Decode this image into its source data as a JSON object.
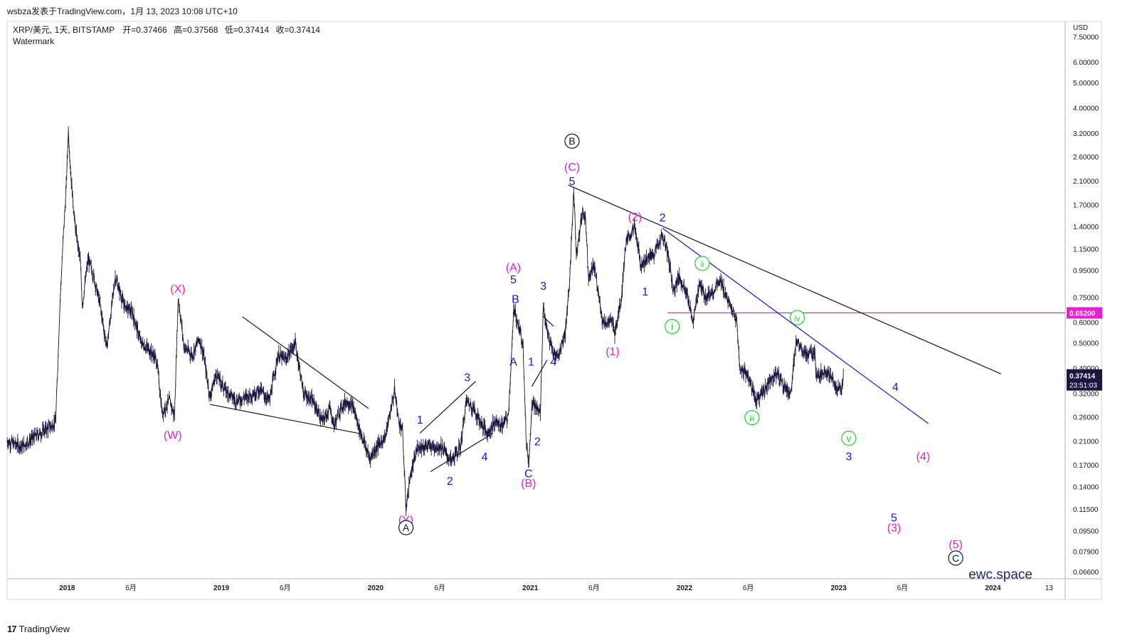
{
  "header": {
    "snapshot_line": "wsbza发表于TradingView.com，1月 13, 2023 10:08 UTC+10"
  },
  "legend": {
    "symbol": "XRP/美元, 1天, BITSTAMP",
    "open_label": "开",
    "open": "=0.37466",
    "high_label": "高",
    "high": "=0.37568",
    "low_label": "低",
    "low": "=0.37414",
    "close_label": "收",
    "close": "=0.37414",
    "watermark_label": "Watermark"
  },
  "footer": {
    "brand": "TradingView",
    "brand_mark": "17"
  },
  "watermark": {
    "text": "ewc.space"
  },
  "colors": {
    "candles": "#1b1640",
    "magenta": "#e91ec7",
    "blue": "#1a14d6",
    "green": "#1bd12b",
    "black": "#131722",
    "hline": "#e620d4",
    "price_tag_bg": "#1b1640",
    "axis_text": "#131722",
    "border": "#b2b5be"
  },
  "chart_data": {
    "type": "line",
    "currency_label": "USD",
    "y_scale": "log",
    "ylim": [
      0.062,
      8.6
    ],
    "xlim": [
      "2017-08-12",
      "2024-06-20"
    ],
    "price_ticks": [
      "7.50000",
      "6.00000",
      "5.00000",
      "4.00000",
      "3.20000",
      "2.60000",
      "2.10000",
      "1.70000",
      "1.40000",
      "1.15000",
      "0.95000",
      "0.75000",
      "0.60000",
      "0.50000",
      "0.40000",
      "0.32000",
      "0.26000",
      "0.21000",
      "0.17000",
      "0.14000",
      "0.11500",
      "0.09500",
      "0.07900",
      "0.06600"
    ],
    "time_ticks": [
      {
        "label": "2018",
        "date": "2018-01-01",
        "bold": true
      },
      {
        "label": "6月",
        "date": "2018-06-01",
        "bold": false
      },
      {
        "label": "2019",
        "date": "2019-01-01",
        "bold": true
      },
      {
        "label": "6月",
        "date": "2019-06-01",
        "bold": false
      },
      {
        "label": "2020",
        "date": "2020-01-01",
        "bold": true
      },
      {
        "label": "6月",
        "date": "2020-06-01",
        "bold": false
      },
      {
        "label": "2021",
        "date": "2021-01-01",
        "bold": true
      },
      {
        "label": "6月",
        "date": "2021-06-01",
        "bold": false
      },
      {
        "label": "2022",
        "date": "2022-01-01",
        "bold": true
      },
      {
        "label": "6月",
        "date": "2022-06-01",
        "bold": false
      },
      {
        "label": "2023",
        "date": "2023-01-01",
        "bold": true
      },
      {
        "label": "6月",
        "date": "2023-06-01",
        "bold": false
      },
      {
        "label": "2024",
        "date": "2024-01-01",
        "bold": true
      },
      {
        "label": "13",
        "date": "2024-05-13",
        "bold": false
      }
    ],
    "series": [
      {
        "kind": "daily-close-path",
        "points": [
          [
            "2017-08-12",
            0.21
          ],
          [
            "2017-09-15",
            0.2
          ],
          [
            "2017-10-20",
            0.22
          ],
          [
            "2017-11-25",
            0.24
          ],
          [
            "2017-12-05",
            0.25
          ],
          [
            "2017-12-15",
            0.7
          ],
          [
            "2017-12-22",
            1.2
          ],
          [
            "2017-12-30",
            2.0
          ],
          [
            "2018-01-04",
            3.3
          ],
          [
            "2018-01-10",
            2.2
          ],
          [
            "2018-01-20",
            1.4
          ],
          [
            "2018-02-01",
            1.05
          ],
          [
            "2018-02-06",
            0.7
          ],
          [
            "2018-02-20",
            1.05
          ],
          [
            "2018-03-05",
            0.9
          ],
          [
            "2018-03-20",
            0.7
          ],
          [
            "2018-04-05",
            0.48
          ],
          [
            "2018-04-25",
            0.9
          ],
          [
            "2018-05-15",
            0.7
          ],
          [
            "2018-06-05",
            0.65
          ],
          [
            "2018-06-25",
            0.5
          ],
          [
            "2018-07-15",
            0.47
          ],
          [
            "2018-08-01",
            0.43
          ],
          [
            "2018-08-14",
            0.27
          ],
          [
            "2018-09-01",
            0.3
          ],
          [
            "2018-09-12",
            0.26
          ],
          [
            "2018-09-21",
            0.75
          ],
          [
            "2018-10-05",
            0.48
          ],
          [
            "2018-10-25",
            0.45
          ],
          [
            "2018-11-10",
            0.52
          ],
          [
            "2018-11-20",
            0.45
          ],
          [
            "2018-12-05",
            0.31
          ],
          [
            "2018-12-20",
            0.38
          ],
          [
            "2019-01-10",
            0.33
          ],
          [
            "2019-02-05",
            0.3
          ],
          [
            "2019-03-01",
            0.31
          ],
          [
            "2019-04-01",
            0.33
          ],
          [
            "2019-04-25",
            0.3
          ],
          [
            "2019-05-15",
            0.45
          ],
          [
            "2019-06-01",
            0.43
          ],
          [
            "2019-06-25",
            0.5
          ],
          [
            "2019-07-15",
            0.32
          ],
          [
            "2019-08-05",
            0.3
          ],
          [
            "2019-08-28",
            0.25
          ],
          [
            "2019-09-15",
            0.28
          ],
          [
            "2019-09-25",
            0.24
          ],
          [
            "2019-10-10",
            0.28
          ],
          [
            "2019-10-25",
            0.3
          ],
          [
            "2019-11-10",
            0.28
          ],
          [
            "2019-11-25",
            0.23
          ],
          [
            "2019-12-18",
            0.18
          ],
          [
            "2020-01-05",
            0.2
          ],
          [
            "2020-01-25",
            0.22
          ],
          [
            "2020-02-15",
            0.33
          ],
          [
            "2020-02-25",
            0.25
          ],
          [
            "2020-03-05",
            0.23
          ],
          [
            "2020-03-13",
            0.115
          ],
          [
            "2020-03-22",
            0.15
          ],
          [
            "2020-04-10",
            0.2
          ],
          [
            "2020-05-01",
            0.2
          ],
          [
            "2020-05-20",
            0.2
          ],
          [
            "2020-06-05",
            0.2
          ],
          [
            "2020-06-28",
            0.175
          ],
          [
            "2020-07-20",
            0.2
          ],
          [
            "2020-08-03",
            0.3
          ],
          [
            "2020-08-20",
            0.28
          ],
          [
            "2020-09-10",
            0.24
          ],
          [
            "2020-09-23",
            0.225
          ],
          [
            "2020-10-10",
            0.25
          ],
          [
            "2020-10-25",
            0.24
          ],
          [
            "2020-11-10",
            0.26
          ],
          [
            "2020-11-24",
            0.7
          ],
          [
            "2020-12-01",
            0.6
          ],
          [
            "2020-12-15",
            0.5
          ],
          [
            "2020-12-23",
            0.2
          ],
          [
            "2020-12-29",
            0.175
          ],
          [
            "2021-01-05",
            0.3
          ],
          [
            "2021-01-15",
            0.28
          ],
          [
            "2021-01-25",
            0.27
          ],
          [
            "2021-02-01",
            0.7
          ],
          [
            "2021-02-10",
            0.55
          ],
          [
            "2021-02-25",
            0.45
          ],
          [
            "2021-03-10",
            0.45
          ],
          [
            "2021-03-25",
            0.55
          ],
          [
            "2021-04-05",
            0.9
          ],
          [
            "2021-04-14",
            1.96
          ],
          [
            "2021-04-20",
            1.1
          ],
          [
            "2021-05-05",
            1.6
          ],
          [
            "2021-05-12",
            1.5
          ],
          [
            "2021-05-19",
            0.9
          ],
          [
            "2021-06-01",
            1.0
          ],
          [
            "2021-06-22",
            0.6
          ],
          [
            "2021-07-15",
            0.6
          ],
          [
            "2021-07-20",
            0.55
          ],
          [
            "2021-08-05",
            0.75
          ],
          [
            "2021-08-15",
            1.2
          ],
          [
            "2021-09-05",
            1.4
          ],
          [
            "2021-09-20",
            1.0
          ],
          [
            "2021-10-05",
            1.05
          ],
          [
            "2021-10-20",
            1.1
          ],
          [
            "2021-11-05",
            1.25
          ],
          [
            "2021-11-10",
            1.3
          ],
          [
            "2021-11-25",
            1.05
          ],
          [
            "2021-12-05",
            0.8
          ],
          [
            "2021-12-20",
            0.9
          ],
          [
            "2022-01-05",
            0.78
          ],
          [
            "2022-01-22",
            0.6
          ],
          [
            "2022-02-05",
            0.85
          ],
          [
            "2022-02-20",
            0.75
          ],
          [
            "2022-03-05",
            0.78
          ],
          [
            "2022-03-28",
            0.86
          ],
          [
            "2022-04-15",
            0.72
          ],
          [
            "2022-05-05",
            0.6
          ],
          [
            "2022-05-12",
            0.4
          ],
          [
            "2022-05-30",
            0.38
          ],
          [
            "2022-06-18",
            0.3
          ],
          [
            "2022-07-05",
            0.32
          ],
          [
            "2022-07-25",
            0.37
          ],
          [
            "2022-08-10",
            0.38
          ],
          [
            "2022-08-25",
            0.34
          ],
          [
            "2022-09-10",
            0.32
          ],
          [
            "2022-09-23",
            0.52
          ],
          [
            "2022-10-05",
            0.48
          ],
          [
            "2022-10-20",
            0.45
          ],
          [
            "2022-11-05",
            0.46
          ],
          [
            "2022-11-10",
            0.36
          ],
          [
            "2022-11-25",
            0.39
          ],
          [
            "2022-12-05",
            0.39
          ],
          [
            "2022-12-20",
            0.35
          ],
          [
            "2022-12-30",
            0.33
          ],
          [
            "2023-01-08",
            0.34
          ],
          [
            "2023-01-13",
            0.37414
          ]
        ]
      }
    ],
    "trendlines": [
      {
        "color_key": "black",
        "from": [
          "2021-04-01",
          2.02
        ],
        "to": [
          "2024-01-20",
          0.38
        ]
      },
      {
        "color_key": "blue",
        "from": [
          "2021-11-10",
          1.38
        ],
        "to": [
          "2023-08-01",
          0.245
        ]
      },
      {
        "color_key": "black",
        "from": [
          "2019-02-20",
          0.63
        ],
        "to": [
          "2019-12-15",
          0.28
        ]
      },
      {
        "color_key": "black",
        "from": [
          "2018-12-05",
          0.29
        ],
        "to": [
          "2019-11-25",
          0.224
        ]
      },
      {
        "color_key": "black",
        "from": [
          "2020-04-15",
          0.225
        ],
        "to": [
          "2020-08-25",
          0.356
        ]
      },
      {
        "color_key": "black",
        "from": [
          "2020-05-10",
          0.16
        ],
        "to": [
          "2020-10-05",
          0.225
        ]
      },
      {
        "color_key": "black",
        "from": [
          "2021-01-05",
          0.34
        ],
        "to": [
          "2021-02-10",
          0.43
        ]
      },
      {
        "color_key": "black",
        "from": [
          "2021-02-01",
          0.63
        ],
        "to": [
          "2021-02-25",
          0.58
        ]
      }
    ],
    "horizontal_levels": [
      {
        "value": 0.652,
        "label": "0.65200",
        "color_key": "hline",
        "from": "2021-11-22"
      }
    ],
    "last_price": {
      "label": "0.37414",
      "countdown": "23:51:03",
      "value": 0.37414
    },
    "annotations": [
      {
        "text": "(W)",
        "date": "2018-09-08",
        "price": 0.222,
        "color_key": "magenta",
        "style": "plain"
      },
      {
        "text": "(X)",
        "date": "2018-09-20",
        "price": 0.81,
        "color_key": "magenta",
        "style": "plain"
      },
      {
        "text": "(Y)",
        "date": "2020-03-13",
        "price": 0.105,
        "color_key": "magenta",
        "style": "plain"
      },
      {
        "text": "A",
        "date": "2020-03-13",
        "price": 0.0975,
        "color_key": "black",
        "style": "circle"
      },
      {
        "text": "1",
        "date": "2020-04-15",
        "price": 0.254,
        "color_key": "blue",
        "style": "plain"
      },
      {
        "text": "2",
        "date": "2020-06-25",
        "price": 0.148,
        "color_key": "blue",
        "style": "plain"
      },
      {
        "text": "3",
        "date": "2020-08-05",
        "price": 0.37,
        "color_key": "blue",
        "style": "plain"
      },
      {
        "text": "4",
        "date": "2020-09-15",
        "price": 0.183,
        "color_key": "blue",
        "style": "plain"
      },
      {
        "text": "(A)",
        "date": "2020-11-22",
        "price": 0.98,
        "color_key": "magenta",
        "style": "plain"
      },
      {
        "text": "5",
        "date": "2020-11-22",
        "price": 0.88,
        "color_key": "blue",
        "style": "plain"
      },
      {
        "text": "B",
        "date": "2020-11-27",
        "price": 0.74,
        "color_key": "blue",
        "style": "plain"
      },
      {
        "text": "A",
        "date": "2020-11-22",
        "price": 0.425,
        "color_key": "blue",
        "style": "plain"
      },
      {
        "text": "1",
        "date": "2021-01-03",
        "price": 0.425,
        "color_key": "blue",
        "style": "plain"
      },
      {
        "text": "3",
        "date": "2021-02-01",
        "price": 0.83,
        "color_key": "blue",
        "style": "plain"
      },
      {
        "text": "4",
        "date": "2021-02-25",
        "price": 0.425,
        "color_key": "blue",
        "style": "plain"
      },
      {
        "text": "2",
        "date": "2021-01-18",
        "price": 0.21,
        "color_key": "blue",
        "style": "plain"
      },
      {
        "text": "C",
        "date": "2020-12-28",
        "price": 0.158,
        "color_key": "blue",
        "style": "plain"
      },
      {
        "text": "(B)",
        "date": "2020-12-28",
        "price": 0.145,
        "color_key": "magenta",
        "style": "plain"
      },
      {
        "text": "B",
        "date": "2021-04-10",
        "price": 2.98,
        "color_key": "black",
        "style": "circle"
      },
      {
        "text": "(C)",
        "date": "2021-04-10",
        "price": 2.38,
        "color_key": "magenta",
        "style": "plain"
      },
      {
        "text": "5",
        "date": "2021-04-10",
        "price": 2.1,
        "color_key": "blue",
        "style": "plain"
      },
      {
        "text": "(1)",
        "date": "2021-07-15",
        "price": 0.466,
        "color_key": "magenta",
        "style": "plain"
      },
      {
        "text": "(2)",
        "date": "2021-09-06",
        "price": 1.53,
        "color_key": "magenta",
        "style": "plain"
      },
      {
        "text": "1",
        "date": "2021-09-30",
        "price": 0.79,
        "color_key": "blue",
        "style": "plain"
      },
      {
        "text": "2",
        "date": "2021-11-10",
        "price": 1.52,
        "color_key": "blue",
        "style": "plain"
      },
      {
        "text": "i",
        "date": "2021-12-03",
        "price": 0.578,
        "color_key": "green",
        "style": "circle"
      },
      {
        "text": "ii",
        "date": "2022-02-12",
        "price": 1.01,
        "color_key": "green",
        "style": "circle"
      },
      {
        "text": "iii",
        "date": "2022-06-10",
        "price": 0.258,
        "color_key": "green",
        "style": "circle"
      },
      {
        "text": "iv",
        "date": "2022-09-25",
        "price": 0.625,
        "color_key": "green",
        "style": "circle"
      },
      {
        "text": "v",
        "date": "2023-01-25",
        "price": 0.215,
        "color_key": "green",
        "style": "circle"
      },
      {
        "text": "3",
        "date": "2023-01-25",
        "price": 0.184,
        "color_key": "blue",
        "style": "plain"
      },
      {
        "text": "4",
        "date": "2023-05-15",
        "price": 0.34,
        "color_key": "blue",
        "style": "plain"
      },
      {
        "text": "5",
        "date": "2023-05-12",
        "price": 0.107,
        "color_key": "blue",
        "style": "plain"
      },
      {
        "text": "(3)",
        "date": "2023-05-12",
        "price": 0.098,
        "color_key": "magenta",
        "style": "plain"
      },
      {
        "text": "(4)",
        "date": "2023-07-20",
        "price": 0.184,
        "color_key": "magenta",
        "style": "plain"
      },
      {
        "text": "(5)",
        "date": "2023-10-05",
        "price": 0.0845,
        "color_key": "magenta",
        "style": "plain"
      },
      {
        "text": "C",
        "date": "2023-10-05",
        "price": 0.0745,
        "color_key": "black",
        "style": "circle"
      }
    ]
  }
}
